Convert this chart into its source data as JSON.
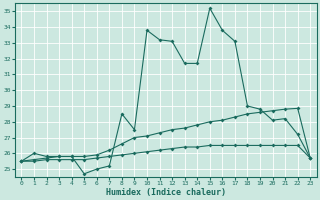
{
  "xlabel": "Humidex (Indice chaleur)",
  "bg_color": "#cce8e0",
  "grid_color": "#b8d8d0",
  "line_color": "#1a6b5e",
  "xlim": [
    -0.5,
    23.5
  ],
  "ylim": [
    24.5,
    35.5
  ],
  "yticks": [
    25,
    26,
    27,
    28,
    29,
    30,
    31,
    32,
    33,
    34,
    35
  ],
  "xticks": [
    0,
    1,
    2,
    3,
    4,
    5,
    6,
    7,
    8,
    9,
    10,
    11,
    12,
    13,
    14,
    15,
    16,
    17,
    18,
    19,
    20,
    21,
    22,
    23
  ],
  "series1_x": [
    0,
    1,
    2,
    3,
    4,
    5,
    6,
    7,
    8,
    9,
    10,
    11,
    12,
    13,
    14,
    15,
    16,
    17,
    18,
    19,
    20,
    21,
    22,
    23
  ],
  "series1_y": [
    25.5,
    26.0,
    25.8,
    25.8,
    25.8,
    24.7,
    25.0,
    25.2,
    28.5,
    27.5,
    33.8,
    33.2,
    33.1,
    31.7,
    31.7,
    35.2,
    33.8,
    33.1,
    29.0,
    28.8,
    28.1,
    28.2,
    27.2,
    25.7
  ],
  "series2_x": [
    0,
    1,
    2,
    3,
    4,
    5,
    6,
    7,
    8,
    9,
    10,
    11,
    12,
    13,
    14,
    15,
    16,
    17,
    18,
    19,
    20,
    21,
    22,
    23
  ],
  "series2_y": [
    25.5,
    25.6,
    25.7,
    25.8,
    25.8,
    25.8,
    25.9,
    26.2,
    26.6,
    27.0,
    27.1,
    27.3,
    27.5,
    27.6,
    27.8,
    28.0,
    28.1,
    28.3,
    28.5,
    28.6,
    28.7,
    28.8,
    28.85,
    25.7
  ],
  "series3_x": [
    0,
    1,
    2,
    3,
    4,
    5,
    6,
    7,
    8,
    9,
    10,
    11,
    12,
    13,
    14,
    15,
    16,
    17,
    18,
    19,
    20,
    21,
    22,
    23
  ],
  "series3_y": [
    25.5,
    25.5,
    25.6,
    25.6,
    25.6,
    25.6,
    25.7,
    25.8,
    25.9,
    26.0,
    26.1,
    26.2,
    26.3,
    26.4,
    26.4,
    26.5,
    26.5,
    26.5,
    26.5,
    26.5,
    26.5,
    26.5,
    26.5,
    25.7
  ]
}
